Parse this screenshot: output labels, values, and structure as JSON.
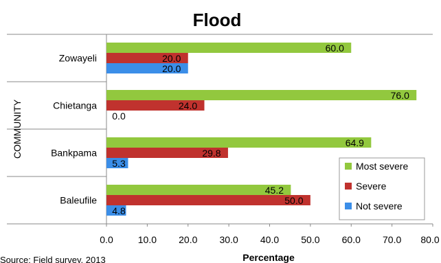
{
  "chart_data": {
    "type": "bar",
    "orientation": "horizontal",
    "title": "Flood",
    "xlabel": "Percentage",
    "ylabel": "COMMUNITY",
    "categories": [
      "Zowayeli",
      "Chietanga",
      "Bankpama",
      "Baleufile"
    ],
    "series": [
      {
        "name": "Most severe",
        "color": "#92c83e",
        "values": [
          60.0,
          76.0,
          64.9,
          45.2
        ],
        "labels": [
          "60.0",
          "76.0",
          "64.9",
          "45.2"
        ]
      },
      {
        "name": "Severe",
        "color": "#c0322e",
        "values": [
          20.0,
          24.0,
          29.8,
          50.0
        ],
        "labels": [
          "20.0",
          "24.0",
          "29.8",
          "50.0"
        ]
      },
      {
        "name": "Not severe",
        "color": "#3b8ee8",
        "values": [
          20.0,
          0.0,
          5.3,
          4.8
        ],
        "labels": [
          "20.0",
          "0.0",
          "5.3",
          "4.8"
        ]
      }
    ],
    "xlim": [
      0,
      80
    ],
    "xticks": [
      "0.0",
      "10.0",
      "20.0",
      "30.0",
      "40.0",
      "50.0",
      "60.0",
      "70.0",
      "80.0"
    ],
    "legend_position": "bottom-right",
    "grid": false
  },
  "source_note": "Source: Field survey, 2013"
}
